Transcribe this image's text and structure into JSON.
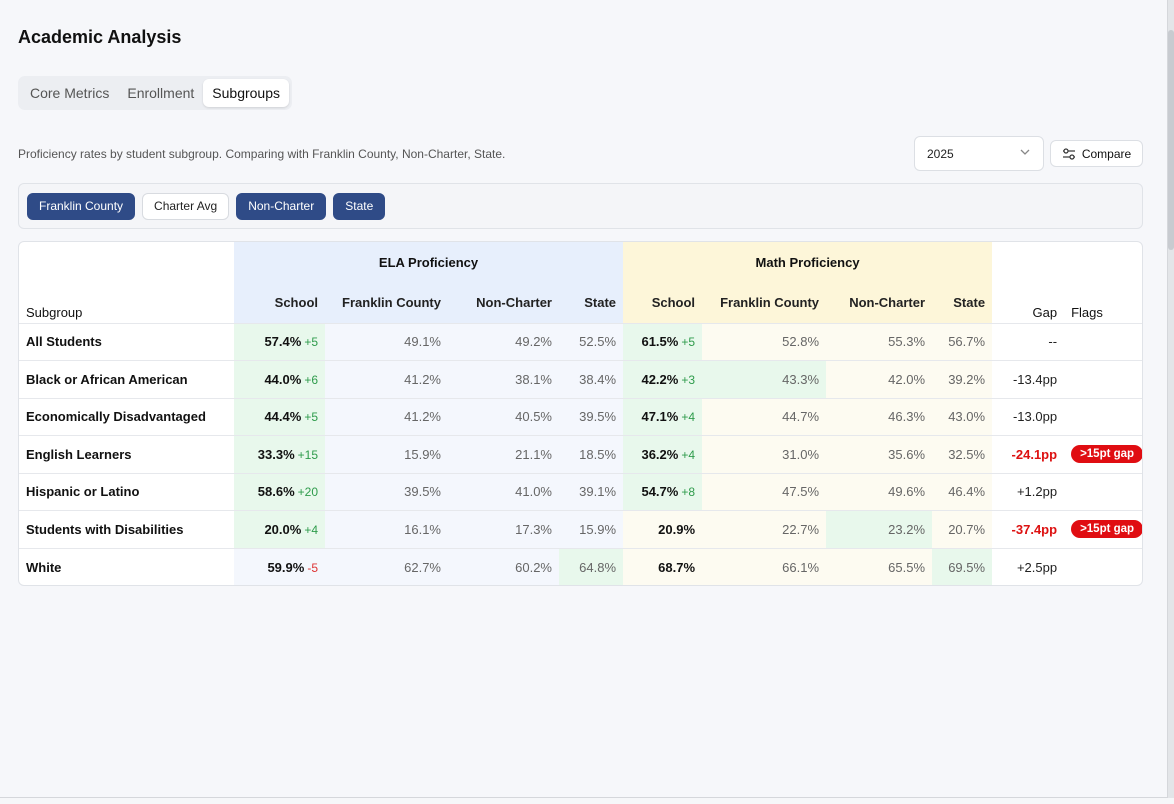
{
  "page": {
    "title": "Academic Analysis"
  },
  "tabs": [
    {
      "label": "Core Metrics",
      "active": false
    },
    {
      "label": "Enrollment",
      "active": false
    },
    {
      "label": "Subgroups",
      "active": true
    }
  ],
  "subtitle": "Proficiency rates by student subgroup. Comparing with Franklin County, Non-Charter, State.",
  "year_select": {
    "value": "2025",
    "icon": "chevron-down-icon"
  },
  "compare_button": {
    "label": "Compare",
    "icon": "sliders-icon"
  },
  "filters": [
    {
      "label": "Franklin County",
      "active": true
    },
    {
      "label": "Charter Avg",
      "active": false
    },
    {
      "label": "Non-Charter",
      "active": true
    },
    {
      "label": "State",
      "active": true
    }
  ],
  "table": {
    "groups": {
      "ela": "ELA Proficiency",
      "math": "Math Proficiency"
    },
    "columns": {
      "subgroup": "Subgroup",
      "school": "School",
      "franklin": "Franklin County",
      "noncharter": "Non-Charter",
      "state": "State",
      "gap": "Gap",
      "flags": "Flags"
    },
    "rows": [
      {
        "subgroup": "All Students",
        "ela": {
          "school": "57.4%",
          "delta": "+5",
          "franklin": "49.1%",
          "noncharter": "49.2%",
          "state": "52.5%"
        },
        "math": {
          "school": "61.5%",
          "delta": "+5",
          "franklin": "52.8%",
          "noncharter": "55.3%",
          "state": "56.7%"
        },
        "gap": "--",
        "flag": ""
      },
      {
        "subgroup": "Black or African American",
        "ela": {
          "school": "44.0%",
          "delta": "+6",
          "franklin": "41.2%",
          "noncharter": "38.1%",
          "state": "38.4%"
        },
        "math": {
          "school": "42.2%",
          "delta": "+3",
          "franklin": "43.3%",
          "noncharter": "42.0%",
          "state": "39.2%"
        },
        "gap": "-13.4pp",
        "flag": ""
      },
      {
        "subgroup": "Economically Disadvantaged",
        "ela": {
          "school": "44.4%",
          "delta": "+5",
          "franklin": "41.2%",
          "noncharter": "40.5%",
          "state": "39.5%"
        },
        "math": {
          "school": "47.1%",
          "delta": "+4",
          "franklin": "44.7%",
          "noncharter": "46.3%",
          "state": "43.0%"
        },
        "gap": "-13.0pp",
        "flag": ""
      },
      {
        "subgroup": "English Learners",
        "ela": {
          "school": "33.3%",
          "delta": "+15",
          "franklin": "15.9%",
          "noncharter": "21.1%",
          "state": "18.5%"
        },
        "math": {
          "school": "36.2%",
          "delta": "+4",
          "franklin": "31.0%",
          "noncharter": "35.6%",
          "state": "32.5%"
        },
        "gap": "-24.1pp",
        "flag": ">15pt gap"
      },
      {
        "subgroup": "Hispanic or Latino",
        "ela": {
          "school": "58.6%",
          "delta": "+20",
          "franklin": "39.5%",
          "noncharter": "41.0%",
          "state": "39.1%"
        },
        "math": {
          "school": "54.7%",
          "delta": "+8",
          "franklin": "47.5%",
          "noncharter": "49.6%",
          "state": "46.4%"
        },
        "gap": "+1.2pp",
        "flag": ""
      },
      {
        "subgroup": "Students with Disabilities",
        "ela": {
          "school": "20.0%",
          "delta": "+4",
          "franklin": "16.1%",
          "noncharter": "17.3%",
          "state": "15.9%"
        },
        "math": {
          "school": "20.9%",
          "delta": "",
          "franklin": "22.7%",
          "noncharter": "23.2%",
          "state": "20.7%"
        },
        "gap": "-37.4pp",
        "flag": ">15pt gap"
      },
      {
        "subgroup": "White",
        "ela": {
          "school": "59.9%",
          "delta": "-5",
          "franklin": "62.7%",
          "noncharter": "60.2%",
          "state": "64.8%"
        },
        "math": {
          "school": "68.7%",
          "delta": "",
          "franklin": "66.1%",
          "noncharter": "65.5%",
          "state": "69.5%"
        },
        "gap": "+2.5pp",
        "flag": ""
      }
    ]
  }
}
